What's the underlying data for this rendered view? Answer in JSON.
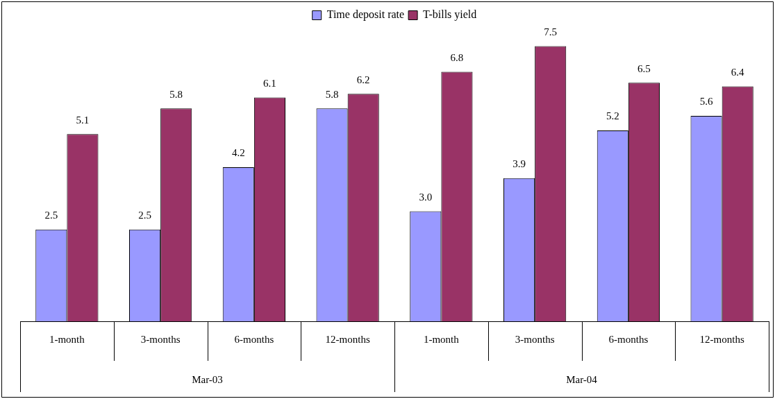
{
  "chart_data": {
    "type": "bar",
    "categories": [
      "1-month",
      "3-months",
      "6-months",
      "12-months",
      "1-month",
      "3-months",
      "6-months",
      "12-months"
    ],
    "series": [
      {
        "name": "Time deposit rate",
        "color": "#9999ff",
        "values": [
          2.5,
          2.5,
          4.2,
          5.8,
          3.0,
          3.9,
          5.2,
          5.6
        ],
        "value_labels": [
          "2.5",
          "2.5",
          "4.2",
          "5.8",
          "3.0",
          "3.9",
          "5.2",
          "5.6"
        ]
      },
      {
        "name": "T-bills yield",
        "color": "#993366",
        "values": [
          5.1,
          5.8,
          6.1,
          6.2,
          6.8,
          7.5,
          6.5,
          6.4
        ],
        "value_labels": [
          "5.1",
          "5.8",
          "6.1",
          "6.2",
          "6.8",
          "7.5",
          "6.5",
          "6.4"
        ]
      }
    ],
    "annotations": [
      "Mar-03",
      "Mar-04"
    ],
    "legend": "top",
    "grid": false
  }
}
